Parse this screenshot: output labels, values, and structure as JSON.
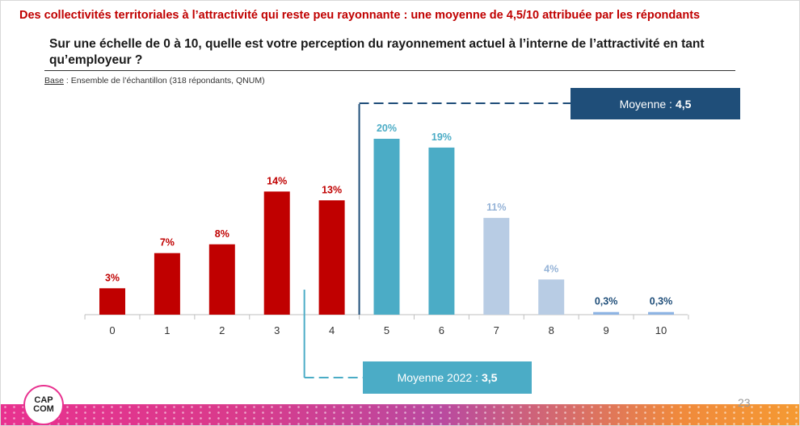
{
  "headline": "Des collectivités territoriales à l’attractivité qui reste peu rayonnante : une moyenne de 4,5/10 attribuée par les répondants",
  "question": "Sur une échelle de 0 à 10, quelle est votre perception du rayonnement actuel à l’interne de l’attractivité en tant qu’employeur ?",
  "base": {
    "label": "Base",
    "text": " : Ensemble de l’échantillon (318 répondants, QNUM)"
  },
  "mean": {
    "label": "Moyenne :",
    "value": "4,5",
    "position": 4.5
  },
  "mean_2022": {
    "label": "Moyenne 2022 :",
    "value": "3,5",
    "position": 3.5
  },
  "logo": {
    "line1": "CAP",
    "line2": "COM"
  },
  "page_number": "23",
  "colors": {
    "low": "#c00000",
    "mid": "#4bacc6",
    "high": "#b8cce4",
    "top": "#8eb4e3",
    "mean_line": "#1f4e79",
    "mean22_line": "#4bacc6",
    "label_low": "#c00000",
    "label_mid": "#4bacc6",
    "label_high": "#95b3d7",
    "label_top": "#1f4e79"
  },
  "chart_data": {
    "type": "bar",
    "categories": [
      "0",
      "1",
      "2",
      "3",
      "4",
      "5",
      "6",
      "7",
      "8",
      "9",
      "10"
    ],
    "values": [
      3,
      7,
      8,
      14,
      13,
      20,
      19,
      11,
      4,
      0.3,
      0.3
    ],
    "labels": [
      "3%",
      "7%",
      "8%",
      "14%",
      "13%",
      "20%",
      "19%",
      "11%",
      "4%",
      "0,3%",
      "0,3%"
    ],
    "groups": [
      "low",
      "low",
      "low",
      "low",
      "low",
      "mid",
      "mid",
      "high",
      "high",
      "top",
      "top"
    ],
    "ymax": 20,
    "grid": false
  }
}
